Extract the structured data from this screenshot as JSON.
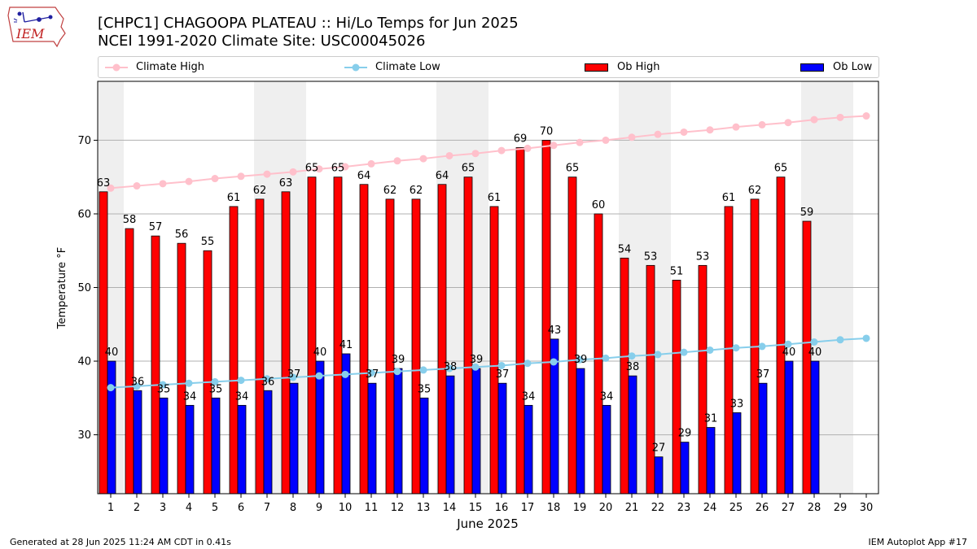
{
  "header": {
    "title_line1": "[CHPC1] CHAGOOPA PLATEAU :: Hi/Lo Temps for Jun 2025",
    "title_line2": "NCEI 1991-2020 Climate Site: USC00045026",
    "logo_text": "IEM"
  },
  "footer": {
    "left": "Generated at 28 Jun 2025 11:24 AM CDT in 0.41s",
    "right": "IEM Autoplot App #17"
  },
  "legend": {
    "climate_high": "Climate High",
    "climate_low": "Climate Low",
    "ob_high": "Ob High",
    "ob_low": "Ob Low"
  },
  "colors": {
    "ob_high": "#ff0000",
    "ob_low": "#0000ff",
    "climate_high": "#ffc0cb",
    "climate_low": "#87ceeb",
    "weekend_shade": "#efefef",
    "grid": "#b0b0b0"
  },
  "chart_data": {
    "type": "bar",
    "xlabel": "June 2025",
    "ylabel": "Temperature °F",
    "ylim": [
      22,
      78
    ],
    "yticks": [
      30,
      40,
      50,
      60,
      70
    ],
    "xticks": [
      1,
      2,
      3,
      4,
      5,
      6,
      7,
      8,
      9,
      10,
      11,
      12,
      13,
      14,
      15,
      16,
      17,
      18,
      19,
      20,
      21,
      22,
      23,
      24,
      25,
      26,
      27,
      28,
      29,
      30
    ],
    "grid": "horizontal",
    "legend_placement": "top",
    "weekend_days": [
      1,
      7,
      8,
      14,
      15,
      21,
      22,
      28,
      29
    ],
    "series": [
      {
        "name": "Ob High",
        "type": "bar",
        "values": [
          63,
          58,
          57,
          56,
          55,
          61,
          62,
          63,
          65,
          65,
          64,
          62,
          62,
          64,
          65,
          61,
          69,
          70,
          65,
          60,
          54,
          53,
          51,
          53,
          61,
          62,
          65,
          59,
          null,
          null
        ]
      },
      {
        "name": "Ob Low",
        "type": "bar",
        "values": [
          40,
          36,
          35,
          34,
          35,
          34,
          36,
          37,
          40,
          41,
          37,
          39,
          35,
          38,
          39,
          37,
          34,
          43,
          39,
          34,
          38,
          27,
          29,
          31,
          33,
          37,
          40,
          40,
          null,
          null
        ]
      },
      {
        "name": "Climate High",
        "type": "line",
        "values": [
          63.5,
          63.8,
          64.1,
          64.4,
          64.8,
          65.1,
          65.4,
          65.7,
          66.1,
          66.4,
          66.8,
          67.2,
          67.5,
          67.9,
          68.2,
          68.6,
          68.9,
          69.3,
          69.7,
          70.0,
          70.4,
          70.8,
          71.1,
          71.4,
          71.8,
          72.1,
          72.4,
          72.8,
          73.1,
          73.3
        ]
      },
      {
        "name": "Climate Low",
        "type": "line",
        "values": [
          36.4,
          36.6,
          36.8,
          37.0,
          37.2,
          37.4,
          37.6,
          37.8,
          38.0,
          38.2,
          38.4,
          38.6,
          38.8,
          39.0,
          39.2,
          39.4,
          39.7,
          39.9,
          40.2,
          40.4,
          40.7,
          40.9,
          41.2,
          41.5,
          41.8,
          42.0,
          42.3,
          42.6,
          42.9,
          43.1
        ]
      }
    ]
  }
}
